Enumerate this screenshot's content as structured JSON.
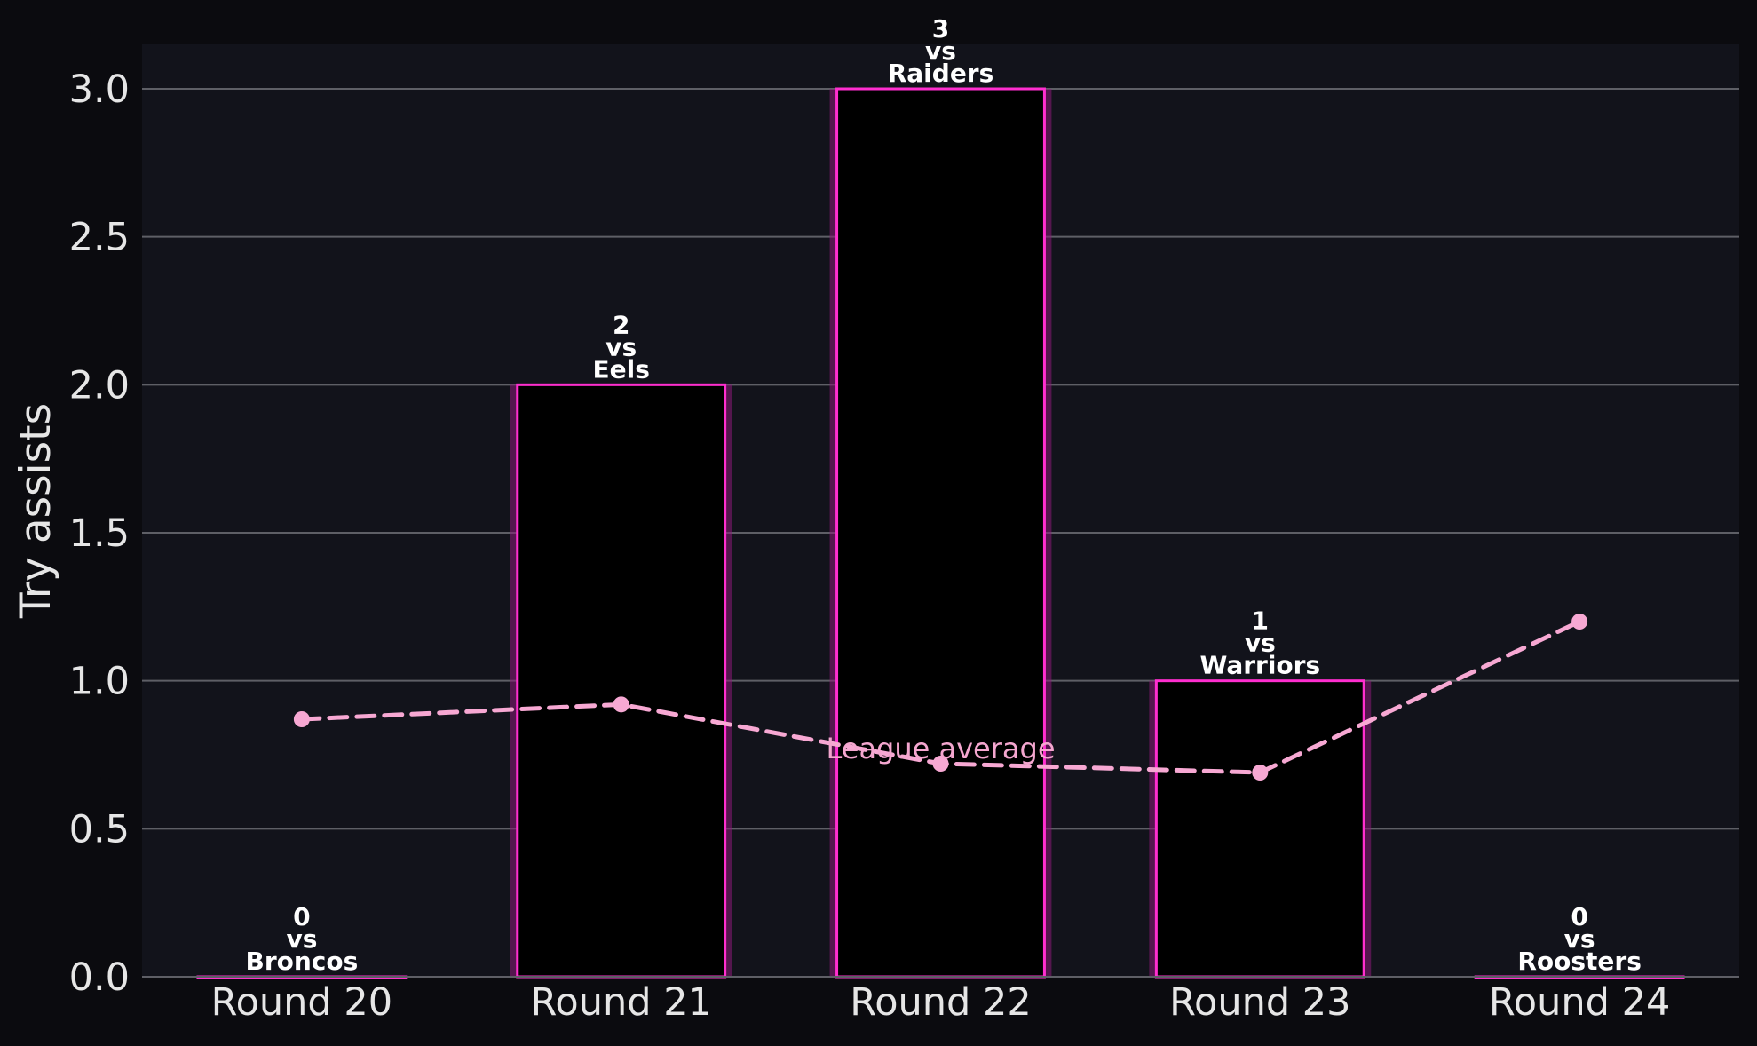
{
  "chart_data": {
    "type": "bar",
    "categories": [
      "Round 20",
      "Round 21",
      "Round 22",
      "Round 23",
      "Round 24"
    ],
    "series": [
      {
        "values": [
          0,
          2,
          3,
          1,
          0
        ]
      },
      {
        "name": "League average",
        "type": "line",
        "values": [
          0.87,
          0.92,
          0.72,
          0.69,
          1.2
        ]
      }
    ],
    "bar_labels": [
      [
        "0",
        "vs",
        "Broncos"
      ],
      [
        "2",
        "vs",
        "Eels"
      ],
      [
        "3",
        "vs",
        "Raiders"
      ],
      [
        "1",
        "vs",
        "Warriors"
      ],
      [
        "0",
        "vs",
        "Roosters"
      ]
    ],
    "title": "",
    "xlabel": "",
    "ylabel": "Try assists",
    "ylim": [
      0,
      3.15
    ],
    "yticks": [
      0,
      0.5,
      1,
      1.5,
      2,
      2.5,
      3
    ],
    "ytick_labels": [
      "0.0",
      "0.5",
      "1.0",
      "1.5",
      "2.0",
      "2.5",
      "3.0"
    ],
    "grid": "horizontal",
    "legend": "none",
    "average_annotation": "League average",
    "colors": {
      "page_background": "#0b0b0f",
      "plot_background": "#12131b",
      "bar_fill": "#000000",
      "bar_edge": "#ff2ecf",
      "bar_glow": "#8a1a78",
      "average_line": "#f7a8d3",
      "grid": "#5e5f66",
      "text": "#e6e6e6",
      "label": "#ffffff"
    }
  }
}
